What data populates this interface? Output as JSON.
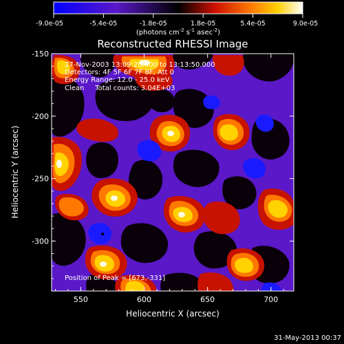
{
  "colorbar": {
    "ticks": [
      "-9.0e-05",
      "-5.4e-05",
      "-1.8e-05",
      "1.8e-05",
      "5.4e-05",
      "9.0e-05"
    ],
    "tick_values": [
      -9e-05,
      -5.4e-05,
      -1.8e-05,
      1.8e-05,
      5.4e-05,
      9e-05
    ],
    "range": [
      -9e-05,
      9e-05
    ],
    "units_prefix": "(photons cm",
    "units_sup1": "-2",
    "units_mid": " s",
    "units_sup2": "-1",
    "units_mid2": " asec",
    "units_sup3": "-2",
    "units_suffix": ")"
  },
  "chart_data": {
    "type": "heatmap",
    "title": "Reconstructed RHESSI Image",
    "xlabel": "Heliocentric X (arcsec)",
    "ylabel": "Heliocentric Y (arcsec)",
    "xlim": [
      527,
      718
    ],
    "ylim": [
      -340,
      -150
    ],
    "xticks": [
      550,
      600,
      650,
      700
    ],
    "yticks": [
      -150,
      -200,
      -250,
      -300
    ],
    "annotations": {
      "time": "27-Nov-2003 13:09:20.000 to 13:13:50.000",
      "detectors": "Detectors: 4F 5F 6F 7F 8F, Att 0",
      "energy": "Energy Range: 12.0 - 25.0 keV",
      "clean": "Clean     Total counts: 3.04E+03",
      "peak": "Position of Peak = [673,-331]"
    },
    "peak_position": [
      673,
      -331
    ],
    "colormap": "blue-purple-black-red-yellow-white"
  },
  "footer": {
    "date": "31-May-2013 00:37"
  }
}
